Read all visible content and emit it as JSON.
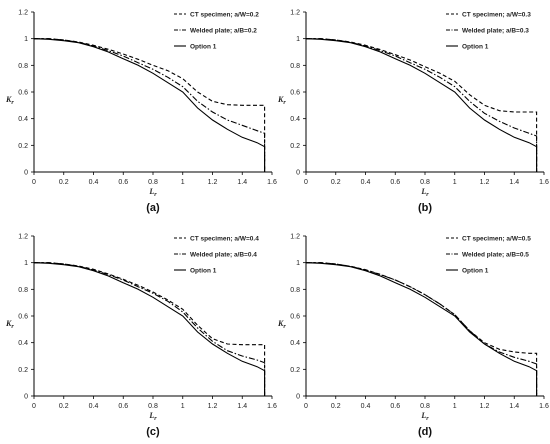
{
  "chart_data": [
    {
      "type": "line",
      "panel_label": "(a)",
      "xlabel": "Lr",
      "ylabel": "Kr",
      "xlim": [
        0,
        1.6
      ],
      "ylim": [
        0,
        1.2
      ],
      "xticks": [
        "0",
        "0.2",
        "0.4",
        "0.6",
        "0.8",
        "1",
        "1.2",
        "1.4",
        "1.6"
      ],
      "yticks": [
        "0",
        "0.2",
        "0.4",
        "0.6",
        "0.8",
        "1",
        "1.2"
      ],
      "legend_position": "top-right",
      "series": [
        {
          "name": "CT specimen; a/W=0.2",
          "style": "dashed",
          "color": "#000000",
          "x": [
            0,
            0.1,
            0.2,
            0.3,
            0.4,
            0.5,
            0.6,
            0.7,
            0.8,
            0.9,
            1.0,
            1.1,
            1.2,
            1.3,
            1.4,
            1.5,
            1.55,
            1.55
          ],
          "y": [
            1.0,
            1.0,
            0.99,
            0.975,
            0.95,
            0.92,
            0.885,
            0.845,
            0.8,
            0.76,
            0.7,
            0.6,
            0.53,
            0.505,
            0.5,
            0.5,
            0.5,
            0.0
          ]
        },
        {
          "name": "Welded plate; a/B=0.2",
          "style": "dashdot",
          "color": "#000000",
          "x": [
            0,
            0.1,
            0.2,
            0.3,
            0.4,
            0.5,
            0.6,
            0.7,
            0.8,
            0.9,
            1.0,
            1.1,
            1.2,
            1.3,
            1.4,
            1.5,
            1.55,
            1.55
          ],
          "y": [
            1.0,
            1.0,
            0.99,
            0.972,
            0.945,
            0.91,
            0.87,
            0.82,
            0.77,
            0.71,
            0.64,
            0.53,
            0.45,
            0.39,
            0.35,
            0.31,
            0.29,
            0.0
          ]
        },
        {
          "name": "Option 1",
          "style": "solid",
          "color": "#000000",
          "x": [
            0,
            0.1,
            0.2,
            0.3,
            0.4,
            0.5,
            0.6,
            0.7,
            0.8,
            0.9,
            1.0,
            1.1,
            1.2,
            1.3,
            1.4,
            1.5,
            1.55,
            1.55
          ],
          "y": [
            1.0,
            0.995,
            0.985,
            0.97,
            0.94,
            0.9,
            0.85,
            0.8,
            0.74,
            0.67,
            0.6,
            0.48,
            0.39,
            0.32,
            0.26,
            0.22,
            0.19,
            0.0
          ]
        }
      ]
    },
    {
      "type": "line",
      "panel_label": "(b)",
      "xlabel": "Lr",
      "ylabel": "Kr",
      "xlim": [
        0,
        1.6
      ],
      "ylim": [
        0,
        1.2
      ],
      "xticks": [
        "0",
        "0.2",
        "0.4",
        "0.6",
        "0.8",
        "1",
        "1.2",
        "1.4",
        "1.6"
      ],
      "yticks": [
        "0",
        "0.2",
        "0.4",
        "0.6",
        "0.8",
        "1",
        "1.2"
      ],
      "legend_position": "top-right",
      "series": [
        {
          "name": "CT specimen; a/W=0.3",
          "style": "dashed",
          "color": "#000000",
          "x": [
            0,
            0.1,
            0.2,
            0.3,
            0.4,
            0.5,
            0.6,
            0.7,
            0.8,
            0.9,
            1.0,
            1.1,
            1.2,
            1.3,
            1.4,
            1.5,
            1.55,
            1.55
          ],
          "y": [
            1.0,
            1.0,
            0.99,
            0.975,
            0.95,
            0.918,
            0.88,
            0.84,
            0.79,
            0.74,
            0.68,
            0.58,
            0.5,
            0.46,
            0.45,
            0.45,
            0.45,
            0.0
          ]
        },
        {
          "name": "Welded plate; a/B=0.3",
          "style": "dashdot",
          "color": "#000000",
          "x": [
            0,
            0.1,
            0.2,
            0.3,
            0.4,
            0.5,
            0.6,
            0.7,
            0.8,
            0.9,
            1.0,
            1.1,
            1.2,
            1.3,
            1.4,
            1.5,
            1.55,
            1.55
          ],
          "y": [
            1.0,
            1.0,
            0.99,
            0.972,
            0.945,
            0.91,
            0.87,
            0.82,
            0.77,
            0.71,
            0.64,
            0.53,
            0.44,
            0.38,
            0.33,
            0.29,
            0.27,
            0.0
          ]
        },
        {
          "name": "Option 1",
          "style": "solid",
          "color": "#000000",
          "x": [
            0,
            0.1,
            0.2,
            0.3,
            0.4,
            0.5,
            0.6,
            0.7,
            0.8,
            0.9,
            1.0,
            1.1,
            1.2,
            1.3,
            1.4,
            1.5,
            1.55,
            1.55
          ],
          "y": [
            1.0,
            0.995,
            0.985,
            0.97,
            0.94,
            0.9,
            0.85,
            0.8,
            0.74,
            0.67,
            0.6,
            0.48,
            0.39,
            0.32,
            0.26,
            0.22,
            0.19,
            0.0
          ]
        }
      ]
    },
    {
      "type": "line",
      "panel_label": "(c)",
      "xlabel": "Lr",
      "ylabel": "Kr",
      "xlim": [
        0,
        1.6
      ],
      "ylim": [
        0,
        1.2
      ],
      "xticks": [
        "0",
        "0.2",
        "0.4",
        "0.6",
        "0.8",
        "1",
        "1.2",
        "1.4",
        "1.6"
      ],
      "yticks": [
        "0",
        "0.2",
        "0.4",
        "0.6",
        "0.8",
        "1",
        "1.2"
      ],
      "legend_position": "top-right",
      "series": [
        {
          "name": "CT specimen; a/W=0.4",
          "style": "dashed",
          "color": "#000000",
          "x": [
            0,
            0.1,
            0.2,
            0.3,
            0.4,
            0.5,
            0.6,
            0.7,
            0.8,
            0.9,
            1.0,
            1.1,
            1.2,
            1.3,
            1.4,
            1.5,
            1.55,
            1.55
          ],
          "y": [
            1.0,
            1.0,
            0.99,
            0.975,
            0.95,
            0.915,
            0.875,
            0.83,
            0.78,
            0.72,
            0.65,
            0.53,
            0.43,
            0.39,
            0.385,
            0.385,
            0.385,
            0.0
          ]
        },
        {
          "name": "Welded plate; a/B=0.4",
          "style": "dashdot",
          "color": "#000000",
          "x": [
            0,
            0.1,
            0.2,
            0.3,
            0.4,
            0.5,
            0.6,
            0.7,
            0.8,
            0.9,
            1.0,
            1.1,
            1.2,
            1.3,
            1.4,
            1.5,
            1.55,
            1.55
          ],
          "y": [
            1.0,
            1.0,
            0.99,
            0.972,
            0.945,
            0.91,
            0.87,
            0.82,
            0.77,
            0.71,
            0.63,
            0.51,
            0.41,
            0.34,
            0.3,
            0.27,
            0.25,
            0.0
          ]
        },
        {
          "name": "Option 1",
          "style": "solid",
          "color": "#000000",
          "x": [
            0,
            0.1,
            0.2,
            0.3,
            0.4,
            0.5,
            0.6,
            0.7,
            0.8,
            0.9,
            1.0,
            1.1,
            1.2,
            1.3,
            1.4,
            1.5,
            1.55,
            1.55
          ],
          "y": [
            1.0,
            0.995,
            0.985,
            0.97,
            0.94,
            0.9,
            0.85,
            0.8,
            0.74,
            0.67,
            0.6,
            0.48,
            0.39,
            0.32,
            0.26,
            0.22,
            0.19,
            0.0
          ]
        }
      ]
    },
    {
      "type": "line",
      "panel_label": "(d)",
      "xlabel": "Lr",
      "ylabel": "Kr",
      "xlim": [
        0,
        1.6
      ],
      "ylim": [
        0,
        1.2
      ],
      "xticks": [
        "0",
        "0.2",
        "0.4",
        "0.6",
        "0.8",
        "1",
        "1.2",
        "1.4",
        "1.6"
      ],
      "yticks": [
        "0",
        "0.2",
        "0.4",
        "0.6",
        "0.8",
        "1",
        "1.2"
      ],
      "legend_position": "top-right",
      "series": [
        {
          "name": "CT specimen; a/W=0.5",
          "style": "dashed",
          "color": "#000000",
          "x": [
            0,
            0.1,
            0.2,
            0.3,
            0.4,
            0.5,
            0.6,
            0.7,
            0.8,
            0.9,
            1.0,
            1.1,
            1.2,
            1.3,
            1.4,
            1.5,
            1.55,
            1.55
          ],
          "y": [
            1.0,
            1.0,
            0.99,
            0.973,
            0.947,
            0.912,
            0.87,
            0.82,
            0.76,
            0.69,
            0.61,
            0.49,
            0.4,
            0.35,
            0.33,
            0.32,
            0.32,
            0.0
          ]
        },
        {
          "name": "Welded plate; a/B=0.5",
          "style": "dashdot",
          "color": "#000000",
          "x": [
            0,
            0.1,
            0.2,
            0.3,
            0.4,
            0.5,
            0.6,
            0.7,
            0.8,
            0.9,
            1.0,
            1.1,
            1.2,
            1.3,
            1.4,
            1.5,
            1.55,
            1.55
          ],
          "y": [
            1.0,
            1.0,
            0.99,
            0.972,
            0.945,
            0.91,
            0.87,
            0.82,
            0.76,
            0.69,
            0.61,
            0.49,
            0.39,
            0.33,
            0.29,
            0.26,
            0.24,
            0.0
          ]
        },
        {
          "name": "Option 1",
          "style": "solid",
          "color": "#000000",
          "x": [
            0,
            0.1,
            0.2,
            0.3,
            0.4,
            0.5,
            0.6,
            0.7,
            0.8,
            0.9,
            1.0,
            1.1,
            1.2,
            1.3,
            1.4,
            1.5,
            1.55,
            1.55
          ],
          "y": [
            1.0,
            0.995,
            0.985,
            0.97,
            0.94,
            0.9,
            0.85,
            0.8,
            0.74,
            0.67,
            0.6,
            0.48,
            0.39,
            0.32,
            0.26,
            0.22,
            0.19,
            0.0
          ]
        }
      ]
    }
  ]
}
